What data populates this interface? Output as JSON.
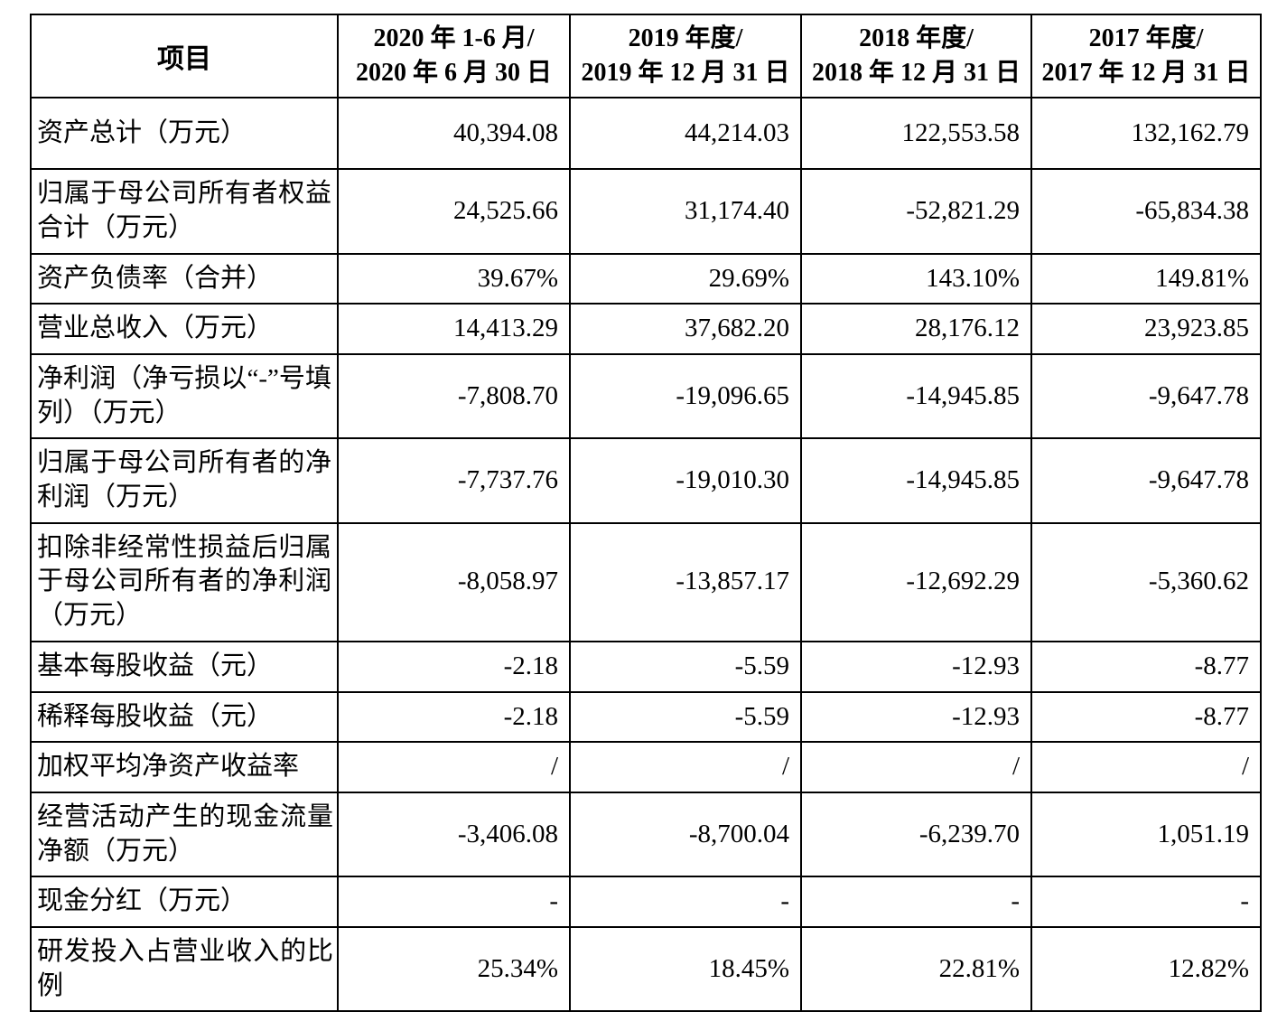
{
  "table": {
    "header": {
      "item_col": "项目",
      "period_cols": [
        {
          "line1": "2020 年 1-6 月/",
          "line2": "2020 年 6 月 30 日"
        },
        {
          "line1": "2019 年度/",
          "line2": "2019 年 12 月 31 日"
        },
        {
          "line1": "2018 年度/",
          "line2": "2018 年 12 月 31 日"
        },
        {
          "line1": "2017 年度/",
          "line2": "2017 年 12 月 31 日"
        }
      ]
    },
    "rows": [
      {
        "label": "资产总计（万元）",
        "values": [
          "40,394.08",
          "44,214.03",
          "122,553.58",
          "132,162.79"
        ]
      },
      {
        "label": "归属于母公司所有者权益合计（万元）",
        "values": [
          "24,525.66",
          "31,174.40",
          "-52,821.29",
          "-65,834.38"
        ]
      },
      {
        "label": "资产负债率（合并）",
        "values": [
          "39.67%",
          "29.69%",
          "143.10%",
          "149.81%"
        ]
      },
      {
        "label": "营业总收入（万元）",
        "values": [
          "14,413.29",
          "37,682.20",
          "28,176.12",
          "23,923.85"
        ]
      },
      {
        "label": "净利润（净亏损以“-”号填列）（万元）",
        "values": [
          "-7,808.70",
          "-19,096.65",
          "-14,945.85",
          "-9,647.78"
        ]
      },
      {
        "label": "归属于母公司所有者的净利润（万元）",
        "values": [
          "-7,737.76",
          "-19,010.30",
          "-14,945.85",
          "-9,647.78"
        ]
      },
      {
        "label": "扣除非经常性损益后归属于母公司所有者的净利润（万元）",
        "values": [
          "-8,058.97",
          "-13,857.17",
          "-12,692.29",
          "-5,360.62"
        ]
      },
      {
        "label": "基本每股收益（元）",
        "values": [
          "-2.18",
          "-5.59",
          "-12.93",
          "-8.77"
        ]
      },
      {
        "label": "稀释每股收益（元）",
        "values": [
          "-2.18",
          "-5.59",
          "-12.93",
          "-8.77"
        ]
      },
      {
        "label": "加权平均净资产收益率",
        "values": [
          "/",
          "/",
          "/",
          "/"
        ]
      },
      {
        "label": "经营活动产生的现金流量净额（万元）",
        "values": [
          "-3,406.08",
          "-8,700.04",
          "-6,239.70",
          "1,051.19"
        ]
      },
      {
        "label": "现金分红（万元）",
        "values": [
          "-",
          "-",
          "-",
          "-"
        ]
      },
      {
        "label": "研发投入占营业收入的比例",
        "values": [
          "25.34%",
          "18.45%",
          "22.81%",
          "12.82%"
        ]
      }
    ]
  }
}
